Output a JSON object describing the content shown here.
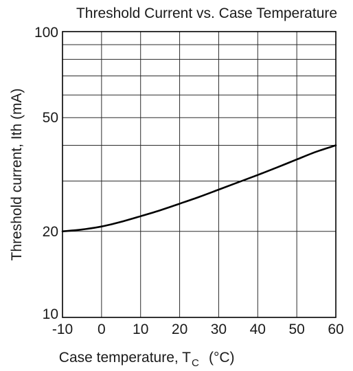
{
  "chart_data": {
    "type": "line",
    "title": "Threshold Current vs. Case Temperature",
    "xlabel": "Case temperature,  T",
    "xlabel_sub": "C",
    "xlabel_unit": "(°C)",
    "ylabel": "Threshold current,  Ith  (mA)",
    "xlim": [
      -10,
      60
    ],
    "ylim": [
      10,
      100
    ],
    "yscale": "log",
    "grid": true,
    "x_ticks": [
      -10,
      0,
      10,
      20,
      30,
      40,
      50,
      60
    ],
    "x_tick_labels": [
      "-10",
      "0",
      "10",
      "20",
      "30",
      "40",
      "50",
      "60"
    ],
    "y_ticks": [
      10,
      20,
      50,
      100
    ],
    "y_tick_labels": [
      "10",
      "20",
      "50",
      "100"
    ],
    "y_minor_grid": [
      30,
      40,
      60,
      70,
      80,
      90
    ],
    "series": [
      {
        "color": "#000000",
        "x": [
          -10,
          -5,
          0,
          5,
          10,
          15,
          20,
          25,
          30,
          35,
          40,
          45,
          50,
          55,
          60
        ],
        "y": [
          20.0,
          20.3,
          20.8,
          21.6,
          22.6,
          23.7,
          25.0,
          26.4,
          28.0,
          29.7,
          31.5,
          33.5,
          35.7,
          38.0,
          40.0
        ]
      }
    ]
  }
}
